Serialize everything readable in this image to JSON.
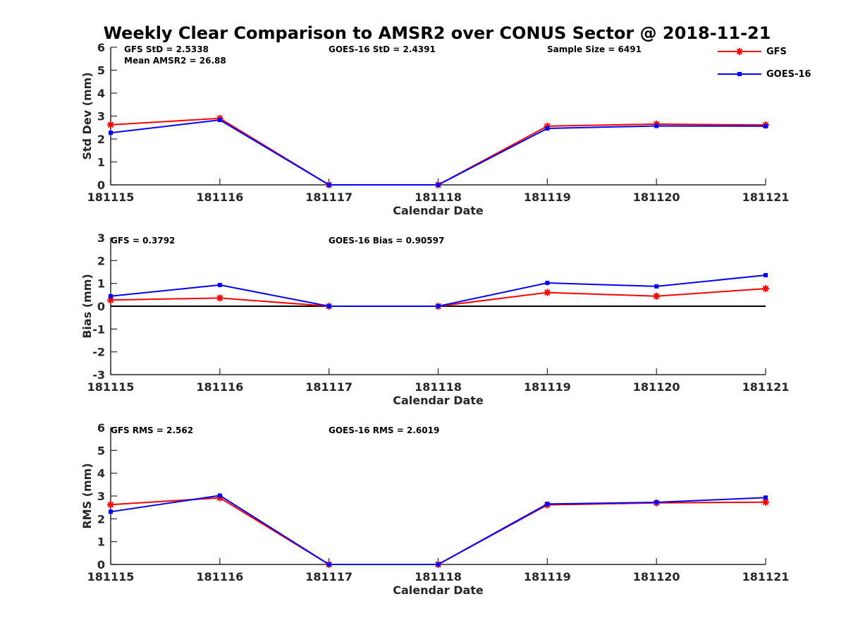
{
  "title": "Weekly Clear Comparison to AMSR2 over CONUS Sector @ 2018-11-21",
  "colors": {
    "gfs": "#ff0000",
    "goes": "#0000ff",
    "axis": "#262626",
    "zero_line": "#000000"
  },
  "legend": [
    {
      "name": "GFS",
      "color": "#ff0000",
      "marker": "asterisk"
    },
    {
      "name": "GOES-16",
      "color": "#0000ff",
      "marker": "square"
    }
  ],
  "chart_data": [
    {
      "type": "line",
      "ylabel": "Std Dev (mm)",
      "xlabel": "Calendar Date",
      "categories": [
        "181115",
        "181116",
        "181117",
        "181118",
        "181119",
        "181120",
        "181121"
      ],
      "ylim": [
        0,
        6
      ],
      "yticks": [
        "0",
        "1",
        "2",
        "3",
        "4",
        "5",
        "6"
      ],
      "zero_line": false,
      "series": [
        {
          "name": "GFS",
          "values": [
            2.62,
            2.9,
            0,
            0,
            2.56,
            2.65,
            2.61
          ]
        },
        {
          "name": "GOES-16",
          "values": [
            2.27,
            2.83,
            0,
            0,
            2.46,
            2.57,
            2.56
          ]
        }
      ],
      "annotations": [
        "GFS StD = 2.5338",
        "Mean AMSR2 = 26.88",
        "GOES-16 StD = 2.4391",
        "Sample Size = 6491"
      ]
    },
    {
      "type": "line",
      "ylabel": "Bias (mm)",
      "xlabel": "Calendar Date",
      "categories": [
        "181115",
        "181116",
        "181117",
        "181118",
        "181119",
        "181120",
        "181121"
      ],
      "ylim": [
        -3,
        3
      ],
      "yticks": [
        "-3",
        "-2",
        "-1",
        "0",
        "1",
        "2",
        "3"
      ],
      "zero_line": true,
      "series": [
        {
          "name": "GFS",
          "values": [
            0.27,
            0.36,
            0,
            0,
            0.6,
            0.44,
            0.77
          ]
        },
        {
          "name": "GOES-16",
          "values": [
            0.44,
            0.93,
            0,
            0,
            1.02,
            0.87,
            1.36
          ]
        }
      ],
      "annotations": [
        "GFS = 0.3792",
        "GOES-16 Bias  = 0.90597"
      ]
    },
    {
      "type": "line",
      "ylabel": "RMS (mm)",
      "xlabel": "Calendar Date",
      "categories": [
        "181115",
        "181116",
        "181117",
        "181118",
        "181119",
        "181120",
        "181121"
      ],
      "ylim": [
        0,
        6
      ],
      "yticks": [
        "0",
        "1",
        "2",
        "3",
        "4",
        "5",
        "6"
      ],
      "zero_line": false,
      "series": [
        {
          "name": "GFS",
          "values": [
            2.62,
            2.92,
            0,
            0,
            2.61,
            2.7,
            2.73
          ]
        },
        {
          "name": "GOES-16",
          "values": [
            2.31,
            3.02,
            0,
            0,
            2.65,
            2.72,
            2.93
          ]
        }
      ],
      "annotations": [
        "GFS RMS = 2.562",
        "GOES-16 RMS = 2.6019"
      ]
    }
  ]
}
